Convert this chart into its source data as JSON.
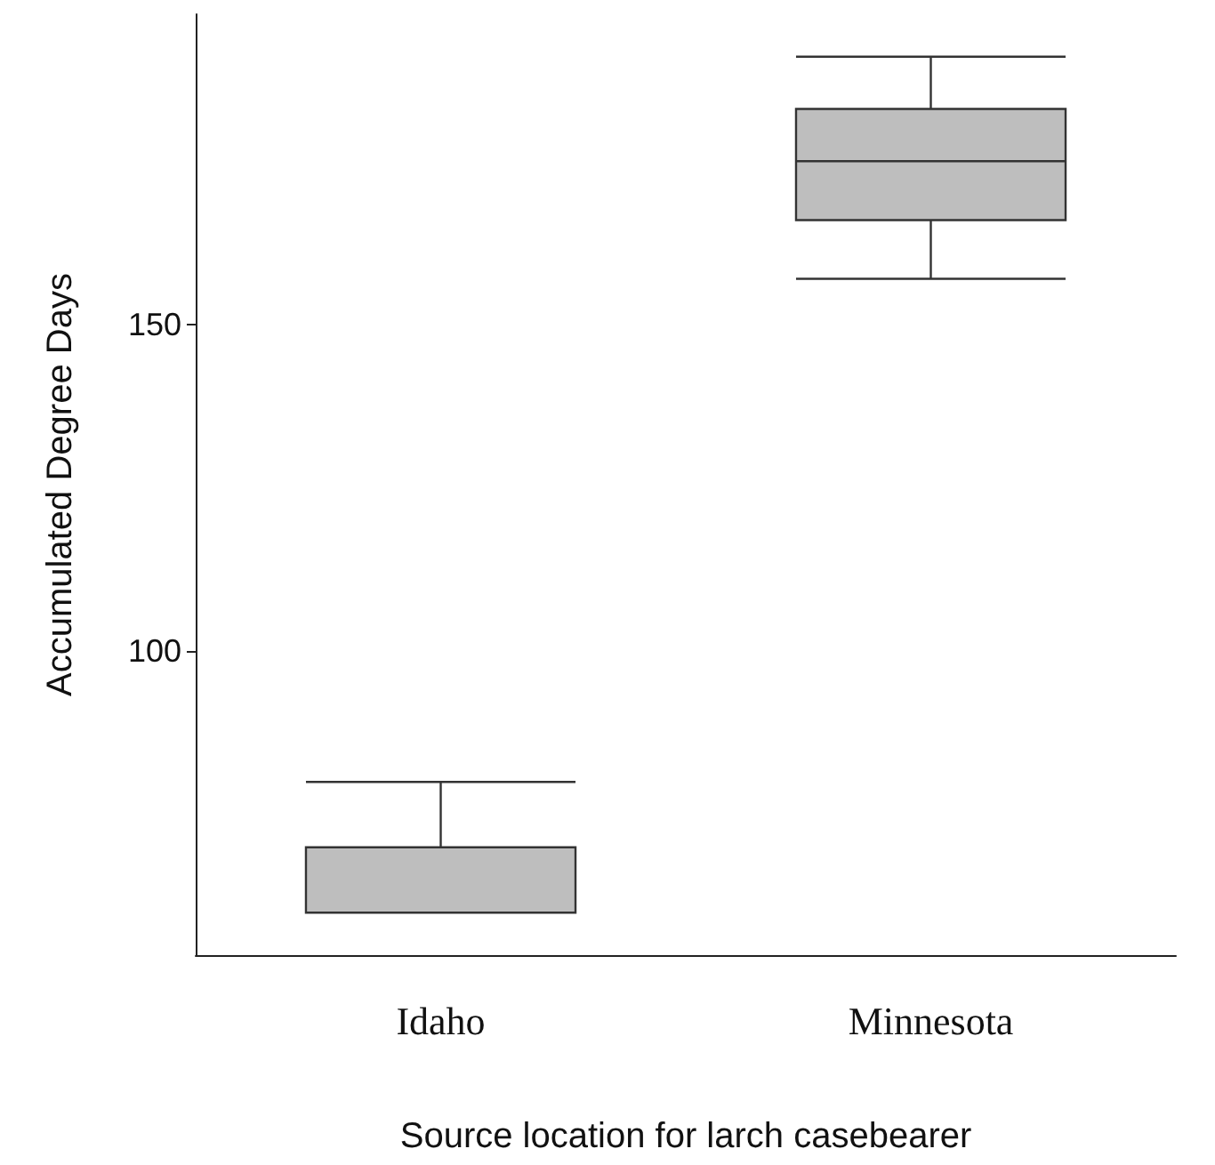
{
  "chart_data": {
    "type": "box",
    "xlabel": "Source location for larch casebearer",
    "ylabel": "Accumulated Degree Days",
    "categories": [
      "Idaho",
      "Minnesota"
    ],
    "boxes": [
      {
        "low": 60,
        "q1": 60,
        "median": 70,
        "q3": 70,
        "high": 80
      },
      {
        "low": 157,
        "q1": 166,
        "median": 175,
        "q3": 183,
        "high": 191
      }
    ],
    "color": "#bebebe",
    "ylim": [
      53.5,
      197.5
    ],
    "yticks": [
      100,
      150
    ],
    "grid": false
  }
}
